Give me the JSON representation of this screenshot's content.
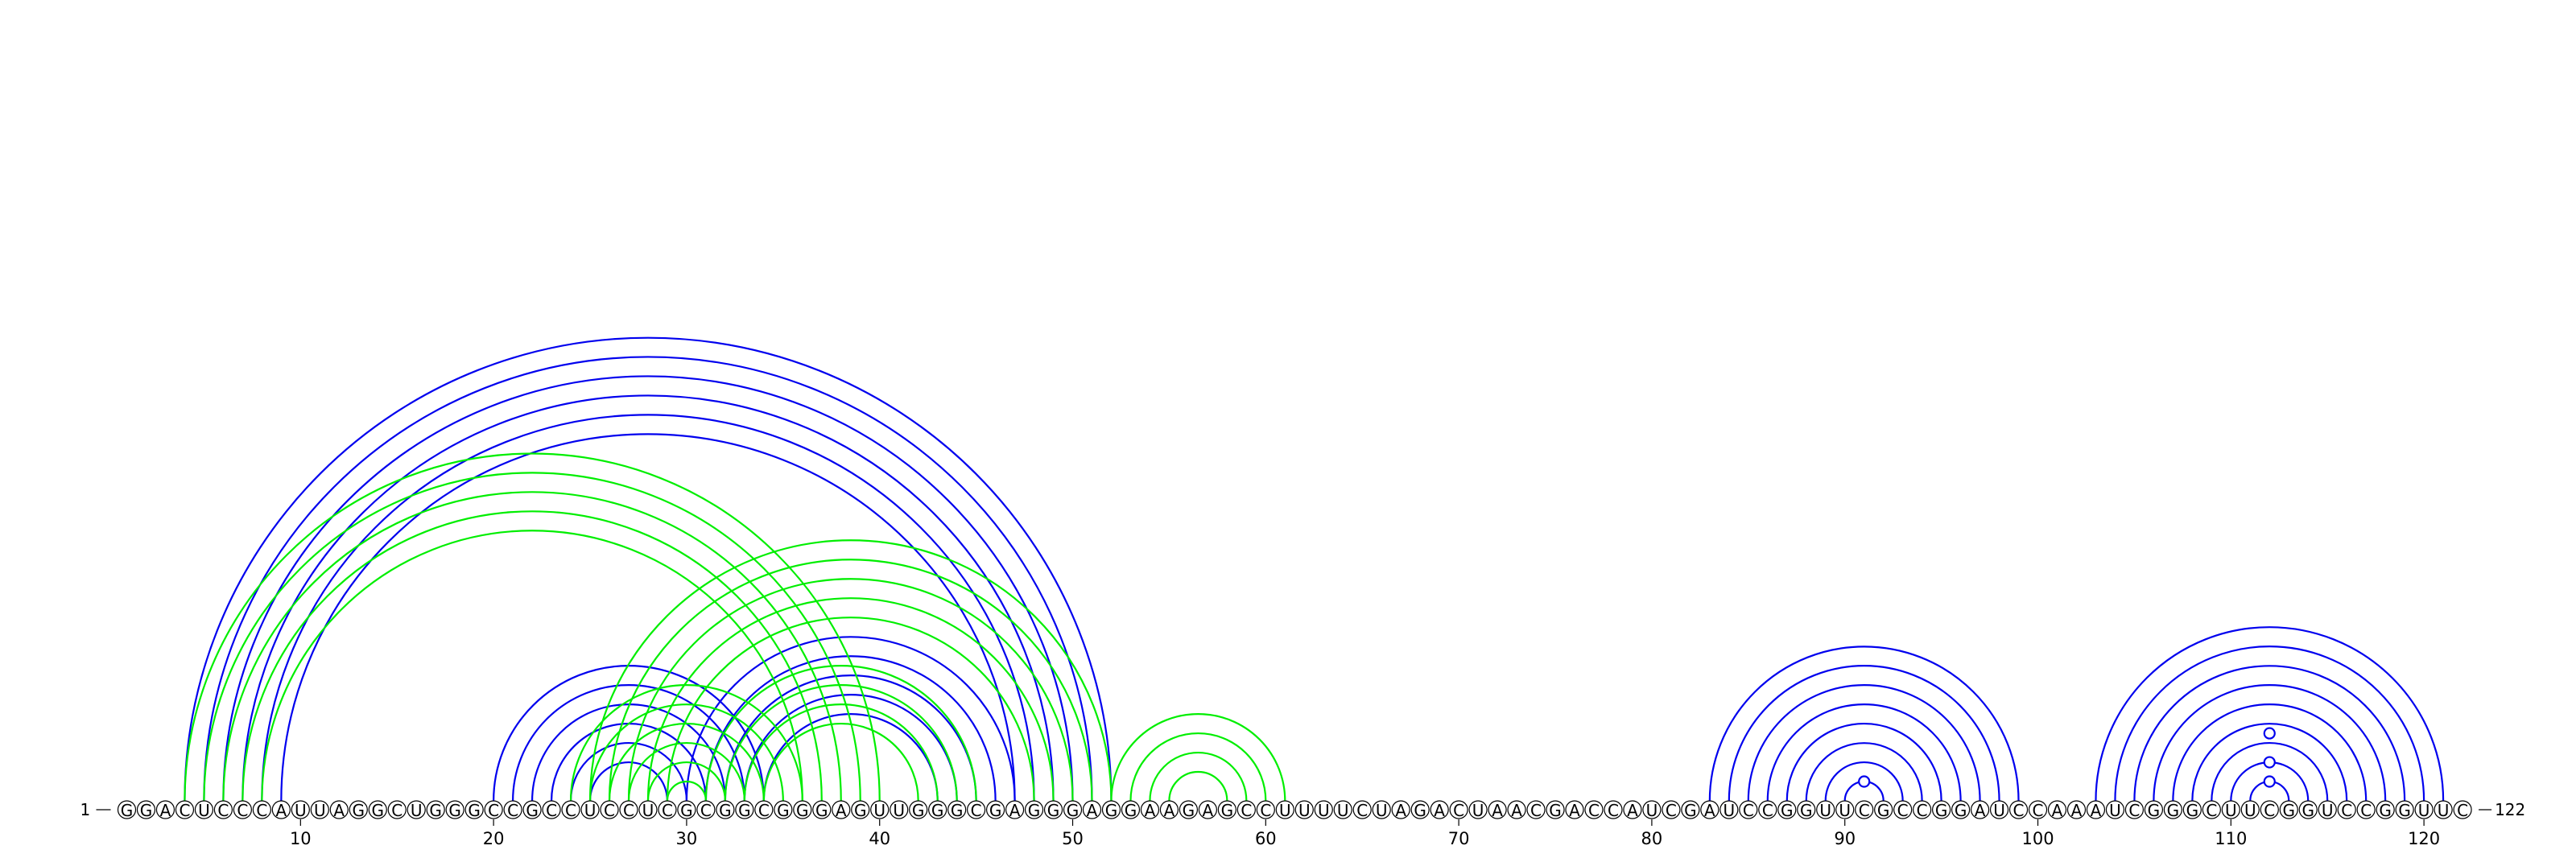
{
  "sequence": "GGACUCCCAUUAGGCUGGGCCGCCUCCUCGCGGCGGGAGUUGGGCGAGGGAGGAAGAGCCUUUUCUAGACUAACGACCAUCGAUCCGGUUCGCCGGAUCCAAAUCGGGCUUCGGUCCGGUUC",
  "start_label": "1",
  "end_label": "122",
  "ticks": [
    "10",
    "20",
    "30",
    "40",
    "50",
    "60",
    "70",
    "80",
    "90",
    "100",
    "110",
    "120"
  ],
  "tick_positions": [
    10,
    20,
    30,
    40,
    50,
    60,
    70,
    80,
    90,
    100,
    110,
    120
  ],
  "colors": {
    "structure_a": "#0000ee",
    "structure_b": "#00ee00",
    "text": "#000000"
  },
  "arc_groups": [
    {
      "name": "long-helix",
      "color_key": "structure_a",
      "pairs": [
        [
          4,
          52
        ],
        [
          5,
          51
        ],
        [
          6,
          50
        ],
        [
          7,
          49
        ],
        [
          8,
          48
        ],
        [
          9,
          47
        ]
      ]
    },
    {
      "name": "inner-helix",
      "color_key": "structure_a",
      "pairs": [
        [
          20,
          34
        ],
        [
          21,
          33
        ],
        [
          22,
          32
        ],
        [
          23,
          31
        ],
        [
          24,
          30
        ],
        [
          25,
          29
        ]
      ]
    },
    {
      "name": "middle-helix",
      "color_key": "structure_a",
      "pairs": [
        [
          30,
          47
        ],
        [
          31,
          46
        ],
        [
          32,
          45
        ],
        [
          33,
          44
        ],
        [
          34,
          43
        ]
      ]
    },
    {
      "name": "hairpin-90",
      "color_key": "structure_a",
      "pairs": [
        [
          83,
          99
        ],
        [
          84,
          98
        ],
        [
          85,
          97
        ],
        [
          86,
          96
        ],
        [
          87,
          95
        ],
        [
          88,
          94
        ],
        [
          89,
          93
        ],
        [
          90,
          92
        ]
      ]
    },
    {
      "name": "hairpin-111",
      "color_key": "structure_a",
      "pairs": [
        [
          103,
          121
        ],
        [
          104,
          120
        ],
        [
          105,
          119
        ],
        [
          106,
          118
        ],
        [
          107,
          117
        ],
        [
          108,
          116
        ],
        [
          109,
          115
        ],
        [
          110,
          114
        ],
        [
          111,
          113
        ]
      ]
    },
    {
      "name": "alt-helix-1",
      "color_key": "structure_b",
      "pairs": [
        [
          4,
          40
        ],
        [
          5,
          39
        ],
        [
          6,
          38
        ],
        [
          7,
          37
        ],
        [
          8,
          36
        ]
      ]
    },
    {
      "name": "alt-helix-2",
      "color_key": "structure_b",
      "pairs": [
        [
          25,
          52
        ],
        [
          26,
          51
        ],
        [
          27,
          50
        ],
        [
          28,
          49
        ],
        [
          29,
          48
        ]
      ]
    },
    {
      "name": "alt-helix-3",
      "color_key": "structure_b",
      "pairs": [
        [
          24,
          36
        ],
        [
          25,
          35
        ],
        [
          26,
          34
        ],
        [
          27,
          33
        ],
        [
          28,
          32
        ],
        [
          29,
          31
        ]
      ]
    },
    {
      "name": "alt-helix-4",
      "color_key": "structure_b",
      "pairs": [
        [
          31,
          45
        ],
        [
          32,
          44
        ],
        [
          33,
          43
        ],
        [
          34,
          42
        ]
      ]
    },
    {
      "name": "alt-hairpin-56",
      "color_key": "structure_b",
      "pairs": [
        [
          52,
          61
        ],
        [
          53,
          60
        ],
        [
          54,
          59
        ],
        [
          55,
          58
        ]
      ]
    }
  ],
  "loop_markers": [
    {
      "position": 91,
      "offset": 1,
      "color_key": "structure_a"
    },
    {
      "position": 112,
      "offset": 1,
      "color_key": "structure_a"
    },
    {
      "position": 112,
      "offset": 2,
      "color_key": "structure_a"
    },
    {
      "position": 112,
      "offset": 3.5,
      "color_key": "structure_a"
    }
  ]
}
